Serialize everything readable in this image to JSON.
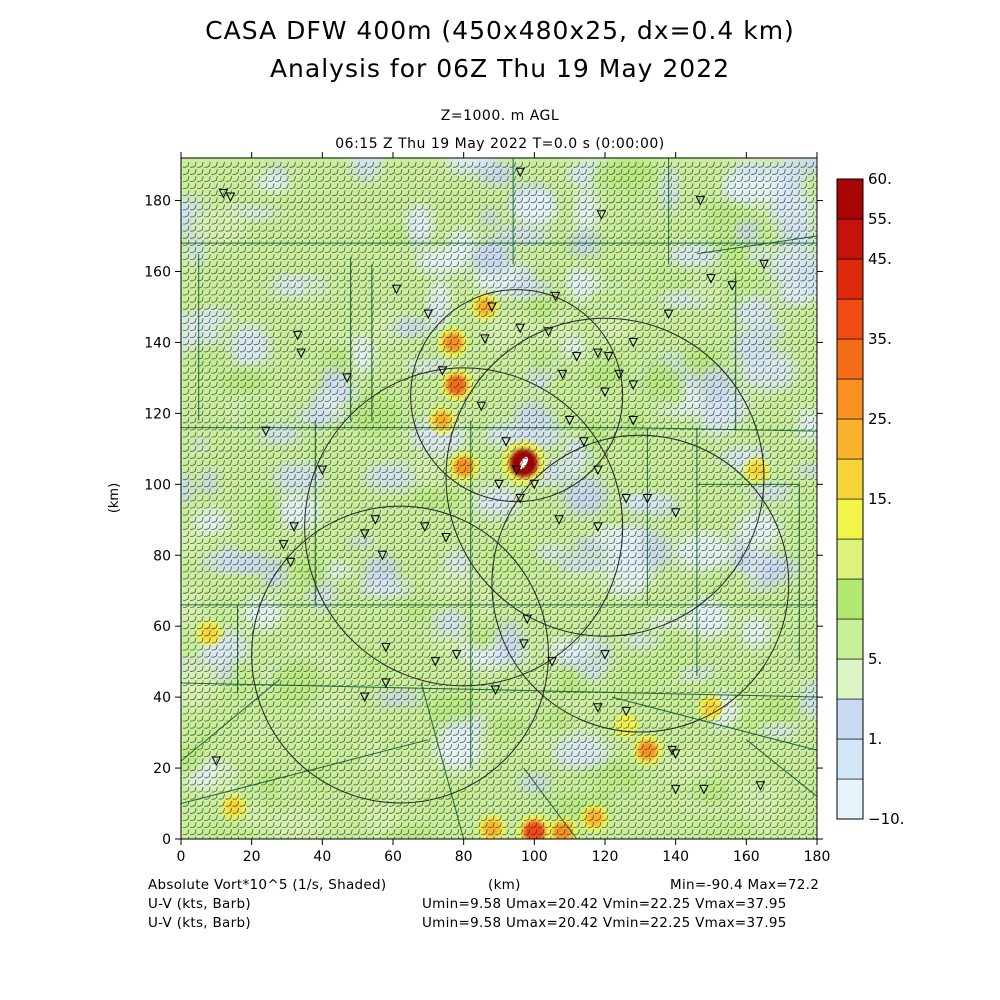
{
  "header": {
    "title_line1": "CASA DFW 400m (450x480x25, dx=0.4 km)",
    "title_line2": "Analysis for 06Z Thu 19 May 2022",
    "level": "Z=1000. m AGL",
    "time": "06:15 Z Thu 19 May 2022    T=0.0 s (0:00:00)"
  },
  "chart_data": {
    "type": "heatmap",
    "xlabel": "(km)",
    "ylabel": "(km)",
    "xlim": [
      0,
      180
    ],
    "ylim": [
      0,
      192
    ],
    "x_ticks": [
      0,
      20,
      40,
      60,
      80,
      100,
      120,
      140,
      160,
      180
    ],
    "y_ticks": [
      0,
      20,
      40,
      60,
      80,
      100,
      120,
      140,
      160,
      180
    ],
    "grid": false,
    "legend": "colorbar-right",
    "colorbar": {
      "levels": [
        -10,
        1,
        5,
        15,
        25,
        35,
        45,
        55,
        60
      ],
      "labels": [
        "−10.",
        "1.",
        "5.",
        "15.",
        "25.",
        "35.",
        "45.",
        "55.",
        "60."
      ],
      "colors": [
        "#e6f5fb",
        "#d3e8f7",
        "#c9d9f3",
        "#dcf5c4",
        "#c8ef9a",
        "#b3e873",
        "#dcf27a",
        "#f2f44a",
        "#f7d53a",
        "#fbb22c",
        "#f99120",
        "#f46d18",
        "#f14a12",
        "#de2a0c",
        "#c5120a",
        "#a80404"
      ]
    },
    "radar_circles": [
      {
        "cx": 95,
        "cy": 125,
        "r": 30
      },
      {
        "cx": 120,
        "cy": 102,
        "r": 45
      },
      {
        "cx": 80,
        "cy": 88,
        "r": 45
      },
      {
        "cx": 62,
        "cy": 52,
        "r": 42
      },
      {
        "cx": 130,
        "cy": 72,
        "r": 42
      }
    ],
    "hotspots": [
      {
        "x": 97,
        "y": 106,
        "value": 60
      },
      {
        "x": 78,
        "y": 128,
        "value": 35
      },
      {
        "x": 80,
        "y": 105,
        "value": 30
      },
      {
        "x": 77,
        "y": 140,
        "value": 30
      },
      {
        "x": 86,
        "y": 150,
        "value": 25
      },
      {
        "x": 74,
        "y": 118,
        "value": 25
      },
      {
        "x": 132,
        "y": 25,
        "value": 30
      },
      {
        "x": 100,
        "y": 2,
        "value": 40
      },
      {
        "x": 88,
        "y": 3,
        "value": 25
      },
      {
        "x": 108,
        "y": 2,
        "value": 30
      },
      {
        "x": 117,
        "y": 6,
        "value": 25
      },
      {
        "x": 150,
        "y": 37,
        "value": 20
      },
      {
        "x": 163,
        "y": 104,
        "value": 20
      },
      {
        "x": 15,
        "y": 9,
        "value": 20
      },
      {
        "x": 8,
        "y": 58,
        "value": 20
      },
      {
        "x": 126,
        "y": 32,
        "value": 18
      }
    ],
    "stats": {
      "field": "Absolute Vort*10^5 (1/s, Shaded)",
      "min": -90.4,
      "max": 72.2,
      "vector1": "U-V (kts, Barb)",
      "vector2": "U-V (kts, Barb)",
      "umin": 9.58,
      "umax": 20.42,
      "vmin": 22.25,
      "vmax": 37.95
    }
  },
  "footer": {
    "field_label": "Absolute Vort*10^5 (1/s, Shaded)",
    "xunits": "(km)",
    "minmax": "Min=-90.4 Max=72.2",
    "barb1_label": "U-V (kts, Barb)",
    "barb1_stats": "Umin=9.58 Umax=20.42 Vmin=22.25 Vmax=37.95",
    "barb2_label": "U-V (kts, Barb)",
    "barb2_stats": "Umin=9.58 Umax=20.42 Vmin=22.25 Vmax=37.95"
  }
}
